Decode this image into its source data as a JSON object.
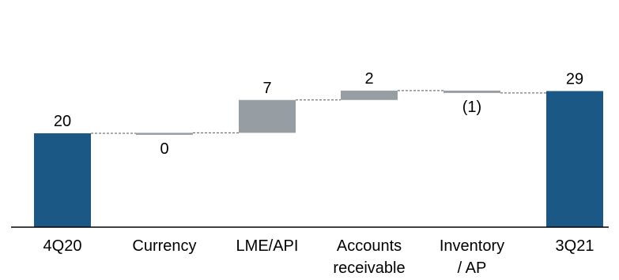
{
  "chart_data": {
    "type": "waterfall",
    "categories": [
      "4Q20",
      "Currency",
      "LME/API",
      "Accounts receivable",
      "Inventory / AP",
      "3Q21"
    ],
    "category_lines": [
      [
        "4Q20"
      ],
      [
        "Currency"
      ],
      [
        "LME/API"
      ],
      [
        "Accounts",
        "receivable"
      ],
      [
        "Inventory",
        "/ AP"
      ],
      [
        "3Q21"
      ]
    ],
    "values": [
      20,
      0.1,
      7,
      2,
      -0.5,
      29
    ],
    "kinds": [
      "total",
      "delta",
      "delta",
      "delta",
      "delta",
      "total"
    ],
    "labels": [
      "20",
      "0",
      "7",
      "2",
      "(1)",
      "29"
    ],
    "ylim": [
      0,
      31
    ],
    "grid": false,
    "connectors": true,
    "colors": {
      "total": "#1b5886",
      "delta": "#979ea3",
      "connector": "#555555",
      "axis": "#000000"
    }
  }
}
